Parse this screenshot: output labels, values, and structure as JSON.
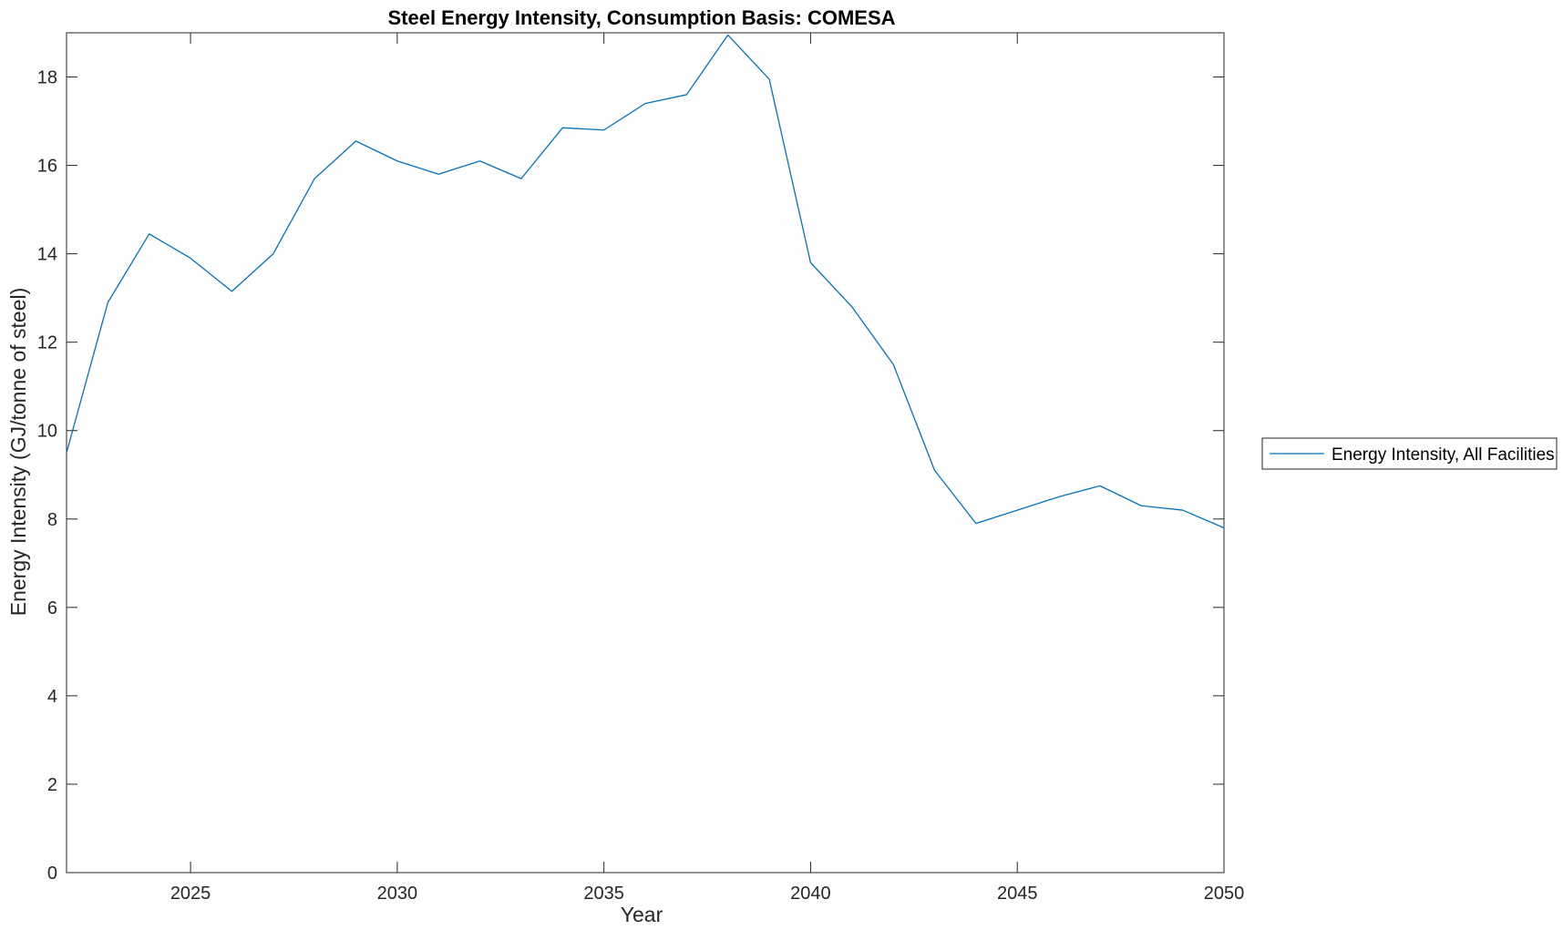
{
  "chart_data": {
    "type": "line",
    "title": "Steel Energy Intensity, Consumption Basis: COMESA",
    "xlabel": "Year",
    "ylabel": "Energy Intensity (GJ/tonne of steel)",
    "xlim": [
      2022,
      2050
    ],
    "ylim": [
      0,
      19
    ],
    "xticks": [
      2025,
      2030,
      2035,
      2040,
      2045,
      2050
    ],
    "yticks": [
      0,
      2,
      4,
      6,
      8,
      10,
      12,
      14,
      16,
      18
    ],
    "grid": false,
    "legend_position": "outside-right",
    "series": [
      {
        "name": "Energy Intensity, All Facilities",
        "color": "#0072bd",
        "x": [
          2022,
          2023,
          2024,
          2025,
          2026,
          2027,
          2028,
          2029,
          2030,
          2031,
          2032,
          2033,
          2034,
          2035,
          2036,
          2037,
          2038,
          2039,
          2040,
          2041,
          2042,
          2043,
          2044,
          2045,
          2046,
          2047,
          2048,
          2049,
          2050
        ],
        "y": [
          9.5,
          12.9,
          14.45,
          13.9,
          13.15,
          14.0,
          15.7,
          16.55,
          16.1,
          15.8,
          16.1,
          15.7,
          16.85,
          16.8,
          17.4,
          17.6,
          18.95,
          17.95,
          13.8,
          12.8,
          11.5,
          9.1,
          7.9,
          8.2,
          8.5,
          8.75,
          8.3,
          8.2,
          7.8
        ]
      }
    ]
  }
}
